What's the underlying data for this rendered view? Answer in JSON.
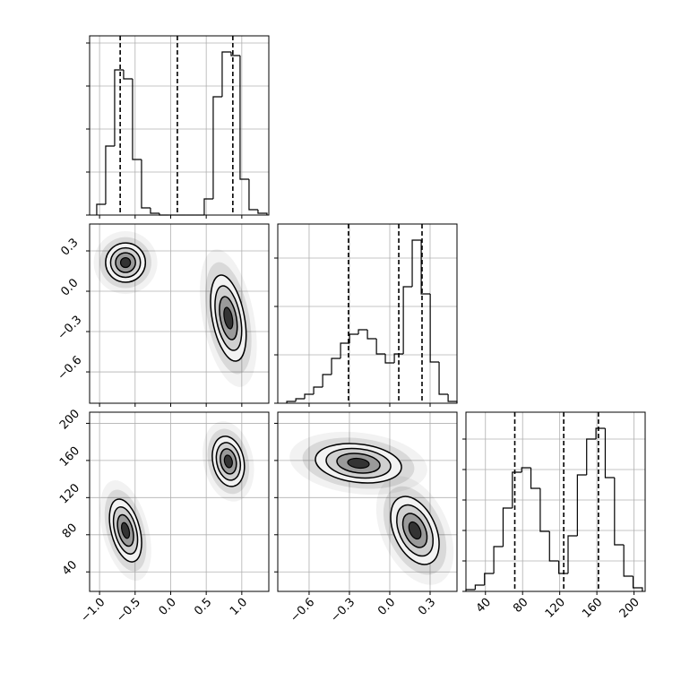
{
  "chart_data": {
    "type": "corner",
    "params": [
      {
        "lim": [
          -1.14,
          1.38
        ],
        "ticks": [
          {
            "value": -1.0,
            "label": "−1.0"
          },
          {
            "value": -0.5,
            "label": "−0.5"
          },
          {
            "value": 0.0,
            "label": "0.0"
          },
          {
            "value": 0.5,
            "label": "0.5"
          },
          {
            "value": 1.0,
            "label": "1.0"
          }
        ],
        "quantiles": [
          -0.71,
          0.094,
          0.874
        ],
        "hist": {
          "bins": [
            -1.04,
            -0.914,
            -0.788,
            -0.662,
            -0.536,
            -0.41,
            -0.284,
            -0.158,
            -0.032,
            0.094,
            0.22,
            0.346,
            0.472,
            0.598,
            0.724,
            0.85,
            0.976,
            1.102,
            1.228,
            1.354
          ],
          "counts": [
            60,
            385,
            810,
            760,
            310,
            40,
            10,
            0,
            0,
            0,
            0,
            0,
            90,
            660,
            910,
            890,
            200,
            30,
            10
          ],
          "ylim": [
            0,
            1000
          ],
          "yticks": [
            0,
            240,
            480,
            720,
            960
          ]
        }
      },
      {
        "lim": [
          -0.833,
          0.5
        ],
        "ticks": [
          {
            "value": -0.6,
            "label": "−0.6"
          },
          {
            "value": -0.3,
            "label": "−0.3"
          },
          {
            "value": 0.0,
            "label": "0.0"
          },
          {
            "value": 0.3,
            "label": "0.3"
          }
        ],
        "quantiles": [
          -0.307,
          0.067,
          0.24
        ],
        "hist": {
          "bins": [
            -0.766,
            -0.699,
            -0.633,
            -0.566,
            -0.499,
            -0.433,
            -0.366,
            -0.299,
            -0.233,
            -0.166,
            -0.099,
            -0.033,
            0.034,
            0.101,
            0.167,
            0.234,
            0.301,
            0.367,
            0.434,
            0.5
          ],
          "counts": [
            10,
            25,
            50,
            90,
            160,
            250,
            335,
            385,
            410,
            360,
            275,
            225,
            275,
            650,
            910,
            610,
            230,
            50,
            10
          ],
          "ylim": [
            0,
            1000
          ],
          "yticks": [
            0,
            270,
            540,
            810
          ]
        }
      },
      {
        "lim": [
          19,
          212
        ],
        "ticks": [
          40,
          80,
          120,
          160,
          200
        ],
        "quantiles": [
          71.6,
          124.3,
          161.7
        ],
        "hist": {
          "bins": [
            19,
            29,
            39,
            49,
            59,
            69,
            79,
            89,
            99,
            109,
            119,
            129,
            139,
            149,
            159,
            169,
            179,
            189,
            199,
            209
          ],
          "counts": [
            10,
            35,
            100,
            250,
            465,
            665,
            690,
            575,
            335,
            170,
            100,
            310,
            650,
            850,
            910,
            635,
            260,
            85,
            20
          ],
          "ylim": [
            0,
            1000
          ],
          "yticks": [
            0,
            170,
            340,
            510,
            680,
            850
          ]
        }
      }
    ],
    "pairs": [
      {
        "clusters": [
          {
            "center": [
              -0.635,
              0.213
            ],
            "sd": [
              0.14,
              0.073
            ],
            "rho": 0.0
          },
          {
            "center": [
              0.811,
              -0.2
            ],
            "sd": [
              0.125,
              0.16
            ],
            "rho": -0.4
          }
        ]
      },
      {
        "clusters": [
          {
            "center": [
              -0.635,
              84.6
            ],
            "sd": [
              0.113,
              16.9
            ],
            "rho": -0.4
          },
          {
            "center": [
              0.811,
              159
            ],
            "sd": [
              0.113,
              13.5
            ],
            "rho": -0.2
          }
        ]
      },
      {
        "clusters": [
          {
            "center": [
              -0.233,
              157
            ],
            "sd": [
              0.16,
              10.6
            ],
            "rho": -0.2
          },
          {
            "center": [
              0.187,
              84.6
            ],
            "sd": [
              0.09,
              18.3
            ],
            "rho": -0.4
          }
        ]
      }
    ]
  }
}
